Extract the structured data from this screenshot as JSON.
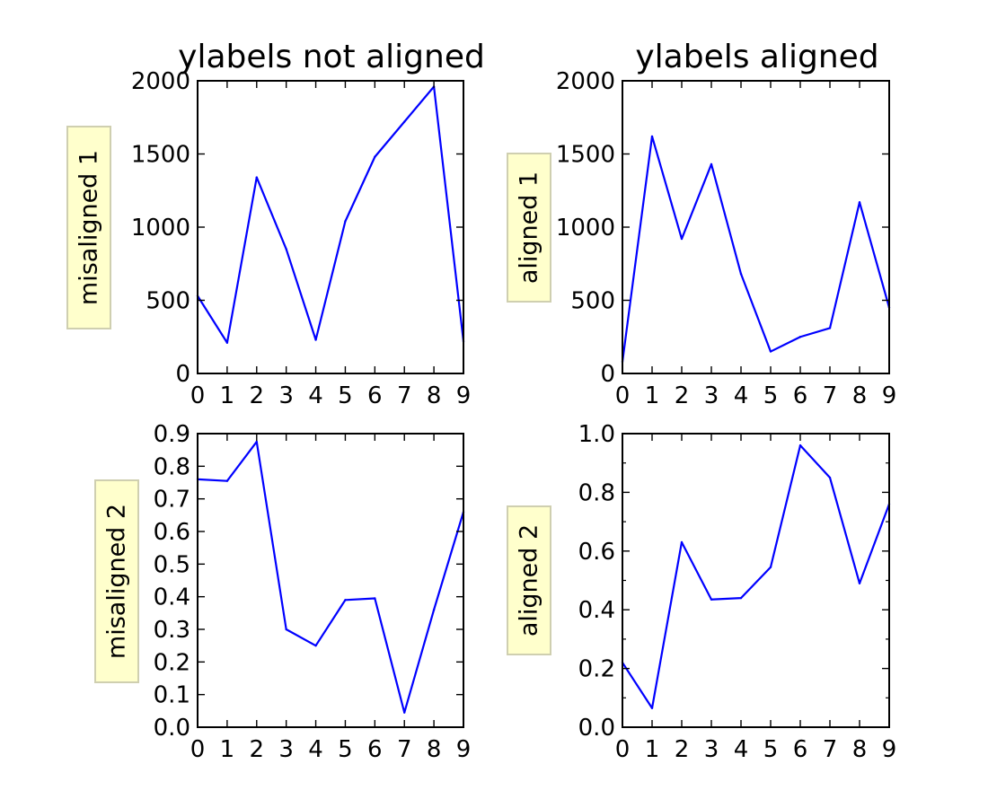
{
  "colors": {
    "line": "#0000ff",
    "axes": "#000000",
    "label_box_fill": "#ffffcc",
    "label_box_edge": "#cfcfb0"
  },
  "chart_data": [
    {
      "type": "line",
      "title": "ylabels not aligned",
      "ylabel": "misaligned 1",
      "x": [
        0,
        1,
        2,
        3,
        4,
        5,
        6,
        7,
        8,
        9
      ],
      "series": [
        {
          "values": [
            530,
            210,
            1340,
            850,
            230,
            1040,
            1480,
            1720,
            1960,
            220
          ]
        }
      ],
      "xlim": [
        0,
        9
      ],
      "ylim": [
        0,
        2000
      ],
      "xticks": [
        "0",
        "1",
        "2",
        "3",
        "4",
        "5",
        "6",
        "7",
        "8",
        "9"
      ],
      "yticks": [
        {
          "value": 0,
          "label": "0"
        },
        {
          "value": 500,
          "label": "500"
        },
        {
          "value": 1000,
          "label": "1000"
        },
        {
          "value": 1500,
          "label": "1500"
        },
        {
          "value": 2000,
          "label": "2000"
        }
      ],
      "minor_yticks": [],
      "grid": false,
      "legend": "none"
    },
    {
      "type": "line",
      "title": "ylabels aligned",
      "ylabel": "aligned 1",
      "x": [
        0,
        1,
        2,
        3,
        4,
        5,
        6,
        7,
        8,
        9
      ],
      "series": [
        {
          "values": [
            80,
            1620,
            920,
            1430,
            680,
            150,
            250,
            310,
            1170,
            450
          ]
        }
      ],
      "xlim": [
        0,
        9
      ],
      "ylim": [
        0,
        2000
      ],
      "xticks": [
        "0",
        "1",
        "2",
        "3",
        "4",
        "5",
        "6",
        "7",
        "8",
        "9"
      ],
      "yticks": [
        {
          "value": 0,
          "label": "0"
        },
        {
          "value": 500,
          "label": "500"
        },
        {
          "value": 1000,
          "label": "1000"
        },
        {
          "value": 1500,
          "label": "1500"
        },
        {
          "value": 2000,
          "label": "2000"
        }
      ],
      "minor_yticks": [],
      "grid": false,
      "legend": "none"
    },
    {
      "type": "line",
      "title": "",
      "ylabel": "misaligned 2",
      "x": [
        0,
        1,
        2,
        3,
        4,
        5,
        6,
        7,
        8,
        9
      ],
      "series": [
        {
          "values": [
            0.76,
            0.755,
            0.875,
            0.3,
            0.25,
            0.39,
            0.395,
            0.045,
            0.36,
            0.66
          ]
        }
      ],
      "xlim": [
        0,
        9
      ],
      "ylim": [
        0,
        0.9
      ],
      "xticks": [
        "0",
        "1",
        "2",
        "3",
        "4",
        "5",
        "6",
        "7",
        "8",
        "9"
      ],
      "yticks": [
        {
          "value": 0.0,
          "label": "0.0"
        },
        {
          "value": 0.1,
          "label": "0.1"
        },
        {
          "value": 0.2,
          "label": "0.2"
        },
        {
          "value": 0.3,
          "label": "0.3"
        },
        {
          "value": 0.4,
          "label": "0.4"
        },
        {
          "value": 0.5,
          "label": "0.5"
        },
        {
          "value": 0.6,
          "label": "0.6"
        },
        {
          "value": 0.7,
          "label": "0.7"
        },
        {
          "value": 0.8,
          "label": "0.8"
        },
        {
          "value": 0.9,
          "label": "0.9"
        }
      ],
      "minor_yticks": [],
      "grid": false,
      "legend": "none"
    },
    {
      "type": "line",
      "title": "",
      "ylabel": "aligned 2",
      "x": [
        0,
        1,
        2,
        3,
        4,
        5,
        6,
        7,
        8,
        9
      ],
      "series": [
        {
          "values": [
            0.22,
            0.065,
            0.63,
            0.435,
            0.44,
            0.545,
            0.96,
            0.85,
            0.49,
            0.76
          ]
        }
      ],
      "xlim": [
        0,
        9
      ],
      "ylim": [
        0,
        1.0
      ],
      "xticks": [
        "0",
        "1",
        "2",
        "3",
        "4",
        "5",
        "6",
        "7",
        "8",
        "9"
      ],
      "yticks": [
        {
          "value": 0.0,
          "label": "0.0"
        },
        {
          "value": 0.2,
          "label": "0.2"
        },
        {
          "value": 0.4,
          "label": "0.4"
        },
        {
          "value": 0.6,
          "label": "0.6"
        },
        {
          "value": 0.8,
          "label": "0.8"
        },
        {
          "value": 1.0,
          "label": "1.0"
        }
      ],
      "minor_yticks": [
        0.1,
        0.3,
        0.5,
        0.7,
        0.9
      ],
      "grid": false,
      "legend": "none"
    }
  ]
}
